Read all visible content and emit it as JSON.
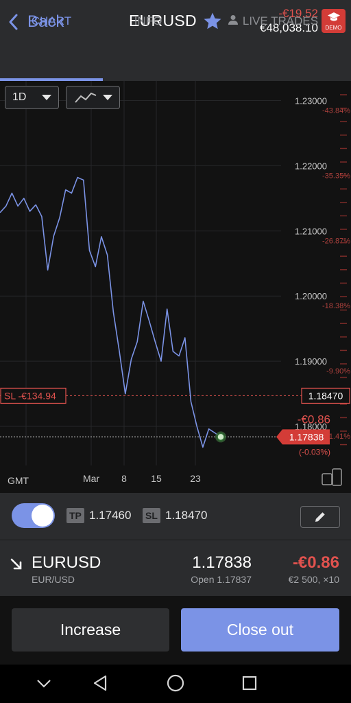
{
  "header": {
    "back_label": "Back",
    "symbol": "EURUSD",
    "pl": "-€19.52",
    "balance": "€48,038.10",
    "demo_label": "DEMO"
  },
  "tabs": [
    {
      "label": "CHART",
      "active": true
    },
    {
      "label": "INFO",
      "active": false
    },
    {
      "label": "LIVE TRADES",
      "active": false
    }
  ],
  "chart_controls": {
    "timeframe": "1D"
  },
  "chart_data": {
    "type": "line",
    "series": [
      {
        "values": [
          1.2128,
          1.2138,
          1.2158,
          1.2138,
          1.215,
          1.213,
          1.214,
          1.2122,
          1.204,
          1.2092,
          1.212,
          1.2163,
          1.2158,
          1.2182,
          1.2178,
          1.207,
          1.2045,
          1.2091,
          1.2063,
          1.1975,
          1.1915,
          1.185,
          1.1903,
          1.193,
          1.1992,
          1.1962,
          1.193,
          1.19,
          1.198,
          1.1915,
          1.1908,
          1.1936,
          1.1838,
          1.18,
          1.1768,
          1.1796,
          1.179,
          1.17838
        ]
      }
    ],
    "y_ticks": [
      "1.23000",
      "1.22000",
      "1.21000",
      "1.20000",
      "1.19000",
      "1.18000"
    ],
    "pct_ticks": [
      "-43.84%",
      "-35.35%",
      "-26.87%",
      "-18.38%",
      "-9.90%",
      "-1.41%"
    ],
    "x_ticks": [
      "Mar",
      "8",
      "15",
      "23"
    ],
    "timezone_label": "GMT",
    "ylim": [
      1.174,
      1.233
    ],
    "stop_loss": {
      "price": 1.1847,
      "price_label": "1.18470",
      "label": "SL -€134.94"
    },
    "current": {
      "price": 1.17838,
      "price_label": "1.17838",
      "pl": "-€0.86",
      "pct": "(-0.03%)"
    },
    "colors": {
      "line": "#7b93e6",
      "stop_loss": "#e0524e",
      "axis_text": "#c8c8c8",
      "pct_text": "#b0423e"
    }
  },
  "orders": {
    "tp_label": "TP",
    "tp_value": "1.17460",
    "sl_label": "SL",
    "sl_value": "1.18470",
    "toggle_on": true
  },
  "position": {
    "symbol": "EURUSD",
    "subtitle": "EUR/USD",
    "price": "1.17838",
    "open_label": "Open 1.17837",
    "pl": "-€0.86",
    "size": "€2 500, ×10"
  },
  "actions": {
    "increase_label": "Increase",
    "close_label": "Close out"
  },
  "icons": {
    "back": "chevron-left-icon",
    "favorite": "star-icon",
    "demo": "graduation-cap-icon",
    "user": "person-icon",
    "dropdown": "caret-down-icon",
    "chart_type": "line-chart-icon",
    "device": "devices-icon",
    "edit": "pencil-icon",
    "trend": "arrow-down-right-icon",
    "nav_down": "chevron-down-icon",
    "nav_back": "triangle-back-icon",
    "nav_home": "circle-home-icon",
    "nav_recent": "square-recent-icon"
  }
}
